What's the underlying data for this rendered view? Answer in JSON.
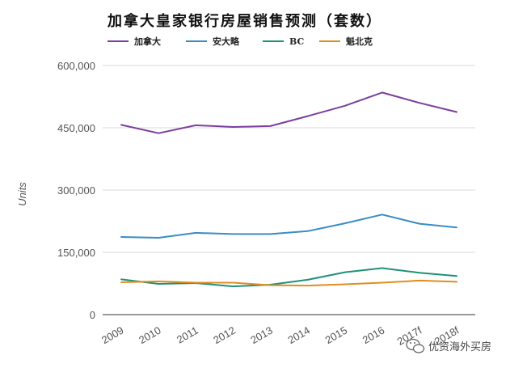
{
  "chart_data": {
    "type": "line",
    "title": "加拿大皇家银行房屋销售预测（套数）",
    "ylabel": "Units",
    "ylim": [
      0,
      600000
    ],
    "yticks": [
      0,
      150000,
      300000,
      450000,
      600000
    ],
    "ytick_labels": [
      "0",
      "150,000",
      "300,000",
      "450,000",
      "600,000"
    ],
    "categories": [
      "2009",
      "2010",
      "2011",
      "2012",
      "2013",
      "2014",
      "2015",
      "2016",
      "2017f",
      "2018f"
    ],
    "grid": true,
    "legend_position": "top-left",
    "series": [
      {
        "name": "加拿大",
        "color": "#7b3f9e",
        "values": [
          457000,
          437000,
          456000,
          452000,
          454000,
          478000,
          503000,
          535000,
          510000,
          488000
        ]
      },
      {
        "name": "安大略",
        "color": "#3a8cc4",
        "values": [
          187000,
          185000,
          197000,
          194000,
          194000,
          201000,
          220000,
          241000,
          219000,
          210000
        ]
      },
      {
        "name": "BC",
        "color": "#1f9178",
        "values": [
          85000,
          74000,
          76000,
          68000,
          72000,
          84000,
          102000,
          112000,
          101000,
          93000
        ]
      },
      {
        "name": "魁北克",
        "color": "#e08e1f",
        "values": [
          78000,
          80000,
          77000,
          77000,
          71000,
          70000,
          73000,
          77000,
          82000,
          79000
        ]
      }
    ]
  },
  "watermark": {
    "text": "优资海外买房",
    "icon": "wechat-icon"
  }
}
